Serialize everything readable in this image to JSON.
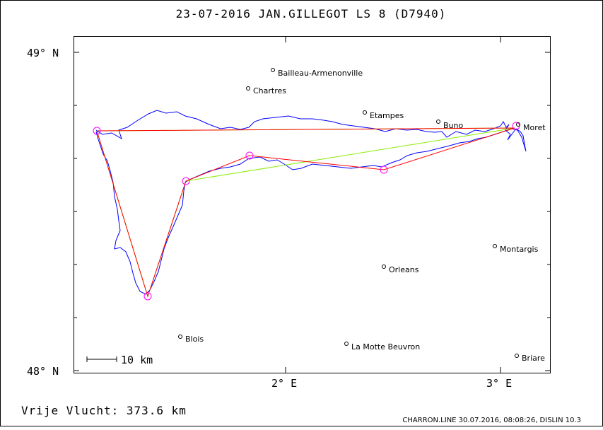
{
  "title": "23-07-2016    JAN.GILLEGOT    LS 8 (D7940)",
  "footer": {
    "distance_label": "Vrije Vlucht:  373.6 km",
    "credits": "CHARRON.LINE 30.07.2016, 08:08:26, DISLIN 10.3"
  },
  "scale_bar": {
    "label": "10 km"
  },
  "axes": {
    "y_labels": [
      "49° N",
      "48° N"
    ],
    "x_labels": [
      "2° E",
      "3° E"
    ]
  },
  "towns": [
    {
      "name": "Bailleau-Armenonville"
    },
    {
      "name": "Chartres"
    },
    {
      "name": "Etampes"
    },
    {
      "name": "Buno"
    },
    {
      "name": "Moret"
    },
    {
      "name": "Montargis"
    },
    {
      "name": "Orleans"
    },
    {
      "name": "Blois"
    },
    {
      "name": "La Motte Beuvron"
    },
    {
      "name": "Briare"
    }
  ],
  "colors": {
    "track": "#0000ff",
    "optimized_route": "#ff0000",
    "declared_route": "#88ee00",
    "turnpoints": "#ff00ff",
    "frame": "#000000"
  }
}
